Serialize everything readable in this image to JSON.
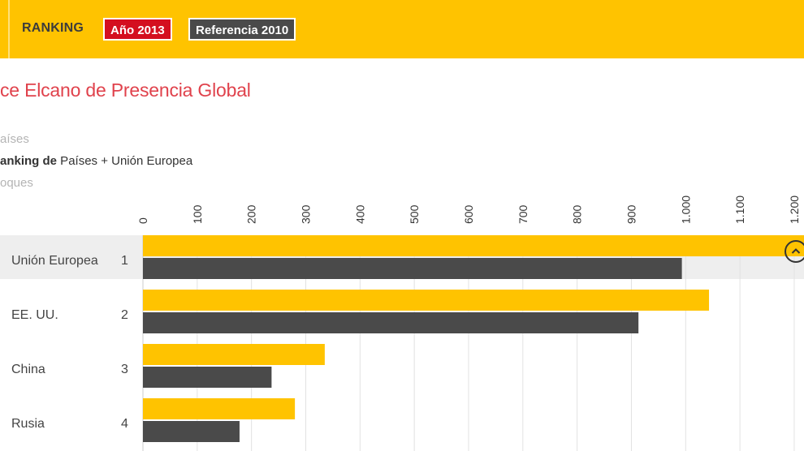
{
  "header": {
    "ranking_label": "RANKING",
    "year_button": "Año 2013",
    "reference_button": "Referencia 2010"
  },
  "title": "ce Elcano de Presencia Global",
  "options": [
    {
      "text": "aíses",
      "bold": "",
      "active": false
    },
    {
      "text": " Países + Unión Europea",
      "bold": "anking de",
      "active": true
    },
    {
      "text": "oques",
      "bold": "",
      "active": false
    }
  ],
  "collapse_icon": "chevron-up-icon",
  "colors": {
    "header_bg": "#ffc300",
    "bar_2013": "#ffc300",
    "bar_2010": "#4a4a4a",
    "title": "#e0424c",
    "year_pill": "#d40f1f",
    "ref_pill": "#4a4a4a",
    "highlight_row": "#eeeeee"
  },
  "chart_data": {
    "type": "bar",
    "orientation": "horizontal",
    "title": "",
    "xlim": [
      0,
      1200
    ],
    "ticks": [
      "0",
      "100",
      "200",
      "300",
      "400",
      "500",
      "600",
      "700",
      "800",
      "900",
      "1.000",
      "1.100",
      "1.200"
    ],
    "tick_values": [
      0,
      100,
      200,
      300,
      400,
      500,
      600,
      700,
      800,
      900,
      1000,
      1100,
      1200
    ],
    "grid": true,
    "categories": [
      "Unión Europea",
      "EE. UU.",
      "China",
      "Rusia"
    ],
    "ranks": [
      "1",
      "2",
      "3",
      "4"
    ],
    "highlighted_row": 0,
    "series": [
      {
        "name": "Año 2013",
        "values": [
          1225,
          1043,
          335,
          280
        ]
      },
      {
        "name": "Referencia 2010",
        "values": [
          993,
          913,
          237,
          178
        ]
      }
    ]
  }
}
